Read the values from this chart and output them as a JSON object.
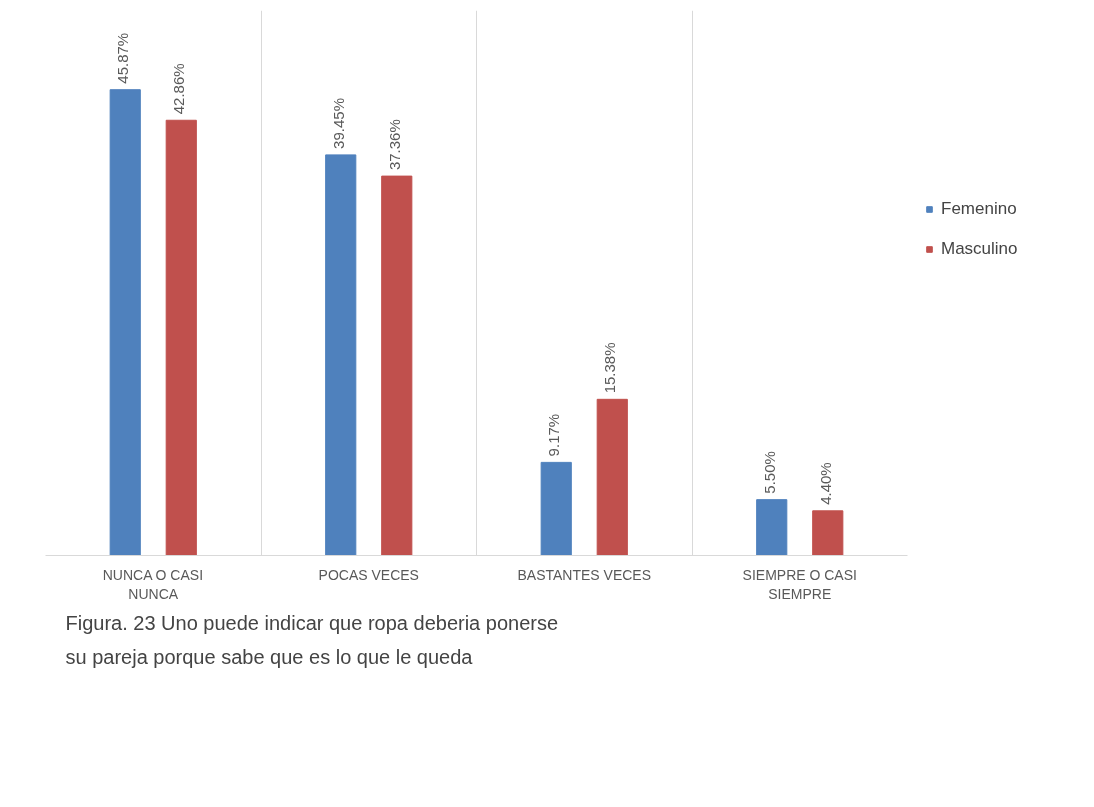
{
  "chart_data": {
    "type": "bar",
    "categories": [
      "NUNCA O CASI NUNCA",
      "POCAS VECES",
      "BASTANTES VECES",
      "SIEMPRE O CASI SIEMPRE"
    ],
    "series": [
      {
        "name": "Femenino",
        "color": "#4f81bd",
        "values": [
          45.87,
          39.45,
          9.17,
          5.5
        ],
        "value_labels": [
          "45.87%",
          "39.45%",
          "9.17%",
          "5.50%"
        ]
      },
      {
        "name": "Masculino",
        "color": "#c0504d",
        "values": [
          42.86,
          37.36,
          15.38,
          4.4
        ],
        "value_labels": [
          "42.86%",
          "37.36%",
          "15.38%",
          "4.40%"
        ]
      }
    ],
    "legend": "right",
    "grid": "x",
    "annotations": [
      "Figura. 23  Uno puede indicar que ropa deberia ponerse su pareja porque sabe que es lo que le queda"
    ]
  }
}
